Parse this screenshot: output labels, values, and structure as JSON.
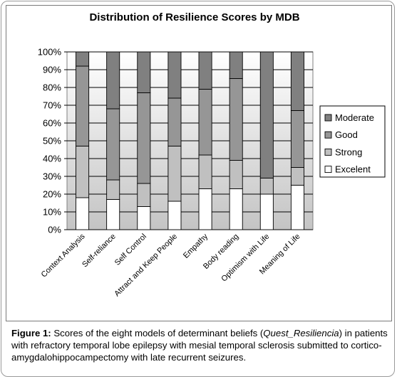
{
  "chart_data": {
    "type": "bar",
    "stacked": true,
    "percent_stacked": true,
    "title": "Distribution of Resilience Scores by MDB",
    "categories": [
      "Context Analysis",
      "Self-reliance",
      "Self Control",
      "Attract and Keep People",
      "Empathy",
      "Body reading",
      "Optimism with Life",
      "Meaning of Life"
    ],
    "yticks": [
      "0%",
      "10%",
      "20%",
      "30%",
      "40%",
      "50%",
      "60%",
      "70%",
      "80%",
      "90%",
      "100%"
    ],
    "ylim": [
      0,
      100
    ],
    "grid": true,
    "legend_position": "right",
    "series": [
      {
        "name": "Excelent",
        "color": "#ffffff",
        "values": [
          18,
          17,
          13,
          16,
          23,
          23,
          20,
          25
        ]
      },
      {
        "name": "Strong",
        "color": "#c0c0c0",
        "values": [
          29,
          11,
          13,
          31,
          19,
          16,
          9,
          10
        ]
      },
      {
        "name": "Good",
        "color": "#969696",
        "values": [
          45,
          40,
          51,
          27,
          37,
          46,
          0,
          32
        ]
      },
      {
        "name": "Moderate",
        "color": "#808080",
        "values": [
          8,
          32,
          23,
          26,
          21,
          15,
          71,
          33
        ]
      }
    ],
    "legend_order": [
      "Moderate",
      "Good",
      "Strong",
      "Excelent"
    ]
  },
  "caption": {
    "label": "Figure 1:",
    "text_before": " Scores of the eight models of determinant beliefs (",
    "italic": "Quest_Resiliencia",
    "text_after": ") in patients with refractory temporal lobe epilepsy with mesial temporal sclerosis submitted to cortico-amygdalohippocampectomy with late recurrent seizures."
  }
}
